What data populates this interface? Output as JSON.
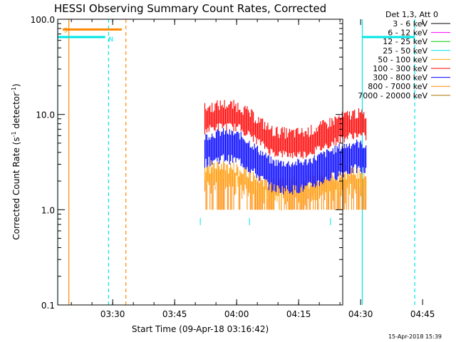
{
  "chart_data": {
    "type": "line",
    "title": "HESSI Observing Summary Count Rates, Corrected",
    "xlabel": "Start Time (09-Apr-18 03:16:42)",
    "ylabel_main": "Corrected Count Rate (s",
    "ylabel_sup1": "-1",
    "ylabel_mid": " detector",
    "ylabel_sup2": "-1",
    "ylabel_end": ")",
    "yscale": "log",
    "ylim": [
      0.1,
      100
    ],
    "xlim_minutes": [
      0,
      66
    ],
    "x_ticks": [
      {
        "t": 13.3,
        "label": "03:30"
      },
      {
        "t": 28.3,
        "label": "03:45"
      },
      {
        "t": 43.3,
        "label": "04:00"
      },
      {
        "t": 58.3,
        "label": "04:15"
      },
      {
        "t": 73.3,
        "label": "04:30"
      },
      {
        "t": 88.3,
        "label": "04:45"
      }
    ],
    "y_ticks": [
      {
        "v": 0.1,
        "label": "0.1"
      },
      {
        "v": 1,
        "label": "1.0"
      },
      {
        "v": 10,
        "label": "10.0"
      },
      {
        "v": 100,
        "label": "100.0"
      }
    ],
    "legend_title": "Det 1,3, Att 0",
    "legend_position": "right-outside",
    "series": [
      {
        "name": "3 - 6 keV",
        "color": "#000000"
      },
      {
        "name": "6 - 12 keV",
        "color": "#ff00ff"
      },
      {
        "name": "12 - 25 keV",
        "color": "#00cc00"
      },
      {
        "name": "25 - 50 keV",
        "color": "#00e5e5"
      },
      {
        "name": "50 - 100 keV",
        "color": "#ffaa00"
      },
      {
        "name": "100 - 300 keV",
        "color": "#ff0000"
      },
      {
        "name": "300 - 800 keV",
        "color": "#0000ff"
      },
      {
        "name": "800 - 7000 keV",
        "color": "#ff8800"
      },
      {
        "name": "7000 - 20000 keV",
        "color": "#aa7700"
      }
    ],
    "red_envelope": [
      {
        "t": 35.6,
        "v": 9.5
      },
      {
        "t": 40,
        "v": 10.5
      },
      {
        "t": 44,
        "v": 10
      },
      {
        "t": 48,
        "v": 7.5
      },
      {
        "t": 52,
        "v": 5.5
      },
      {
        "t": 56,
        "v": 5.2
      },
      {
        "t": 60,
        "v": 5.3
      },
      {
        "t": 64,
        "v": 6.2
      },
      {
        "t": 68,
        "v": 7.5
      },
      {
        "t": 72,
        "v": 8.5
      },
      {
        "t": 74.8,
        "v": 8
      }
    ],
    "blue_envelope": [
      {
        "t": 35.6,
        "v": 5
      },
      {
        "t": 40,
        "v": 5.6
      },
      {
        "t": 44,
        "v": 5.2
      },
      {
        "t": 48,
        "v": 3.8
      },
      {
        "t": 52,
        "v": 2.7
      },
      {
        "t": 56,
        "v": 2.6
      },
      {
        "t": 60,
        "v": 2.7
      },
      {
        "t": 64,
        "v": 3.2
      },
      {
        "t": 68,
        "v": 3.8
      },
      {
        "t": 72,
        "v": 4.3
      },
      {
        "t": 74.8,
        "v": 4
      }
    ],
    "orange_envelope": [
      {
        "t": 35.6,
        "v": 2.7
      },
      {
        "t": 40,
        "v": 2.8
      },
      {
        "t": 44,
        "v": 2.6
      },
      {
        "t": 48,
        "v": 2.2
      },
      {
        "t": 52,
        "v": 1.9
      },
      {
        "t": 56,
        "v": 1.8
      },
      {
        "t": 60,
        "v": 1.9
      },
      {
        "t": 64,
        "v": 2.1
      },
      {
        "t": 68,
        "v": 2.3
      },
      {
        "t": 72,
        "v": 2.5
      },
      {
        "t": 74.8,
        "v": 2.3
      }
    ],
    "data_span_minutes": [
      35.6,
      74.8
    ],
    "saa_level": 65,
    "saa_intervals_minutes": [
      [
        0,
        11.5
      ],
      [
        73.7,
        86.4
      ]
    ],
    "night_level": 78,
    "night_interval_minutes": [
      1.2,
      15.5
    ],
    "flag_labels": [
      {
        "text": "S",
        "t": 1.4,
        "v": 78,
        "color": "#ff8800"
      },
      {
        "text": "N",
        "t": 12.3,
        "v": 63,
        "color": "#00e5e5"
      }
    ],
    "vlines": [
      {
        "t": 0,
        "style": "solid",
        "color": "#00e5e5"
      },
      {
        "t": 12.3,
        "style": "dashed",
        "color": "#00e5e5"
      },
      {
        "t": 73.7,
        "style": "solid",
        "color": "#00e5e5"
      },
      {
        "t": 86.4,
        "style": "dashed",
        "color": "#00e5e5"
      },
      {
        "t": 2.7,
        "style": "solid",
        "color": "#ff8800"
      },
      {
        "t": 16.5,
        "style": "dashed",
        "color": "#ff8800"
      }
    ],
    "cyan_ticks": [
      {
        "t": 34.5,
        "v": 0.75
      },
      {
        "t": 46.4,
        "v": 0.75
      },
      {
        "t": 66.0,
        "v": 0.75
      }
    ]
  },
  "timestamp": "15-Apr-2018 15:39",
  "colors": {
    "background": "#ffffff",
    "axes": "#000000",
    "cyan": "#00e5e5",
    "orange": "#ff8800",
    "red": "#ff0000",
    "blue": "#0000ff",
    "gold": "#ffaa00"
  }
}
